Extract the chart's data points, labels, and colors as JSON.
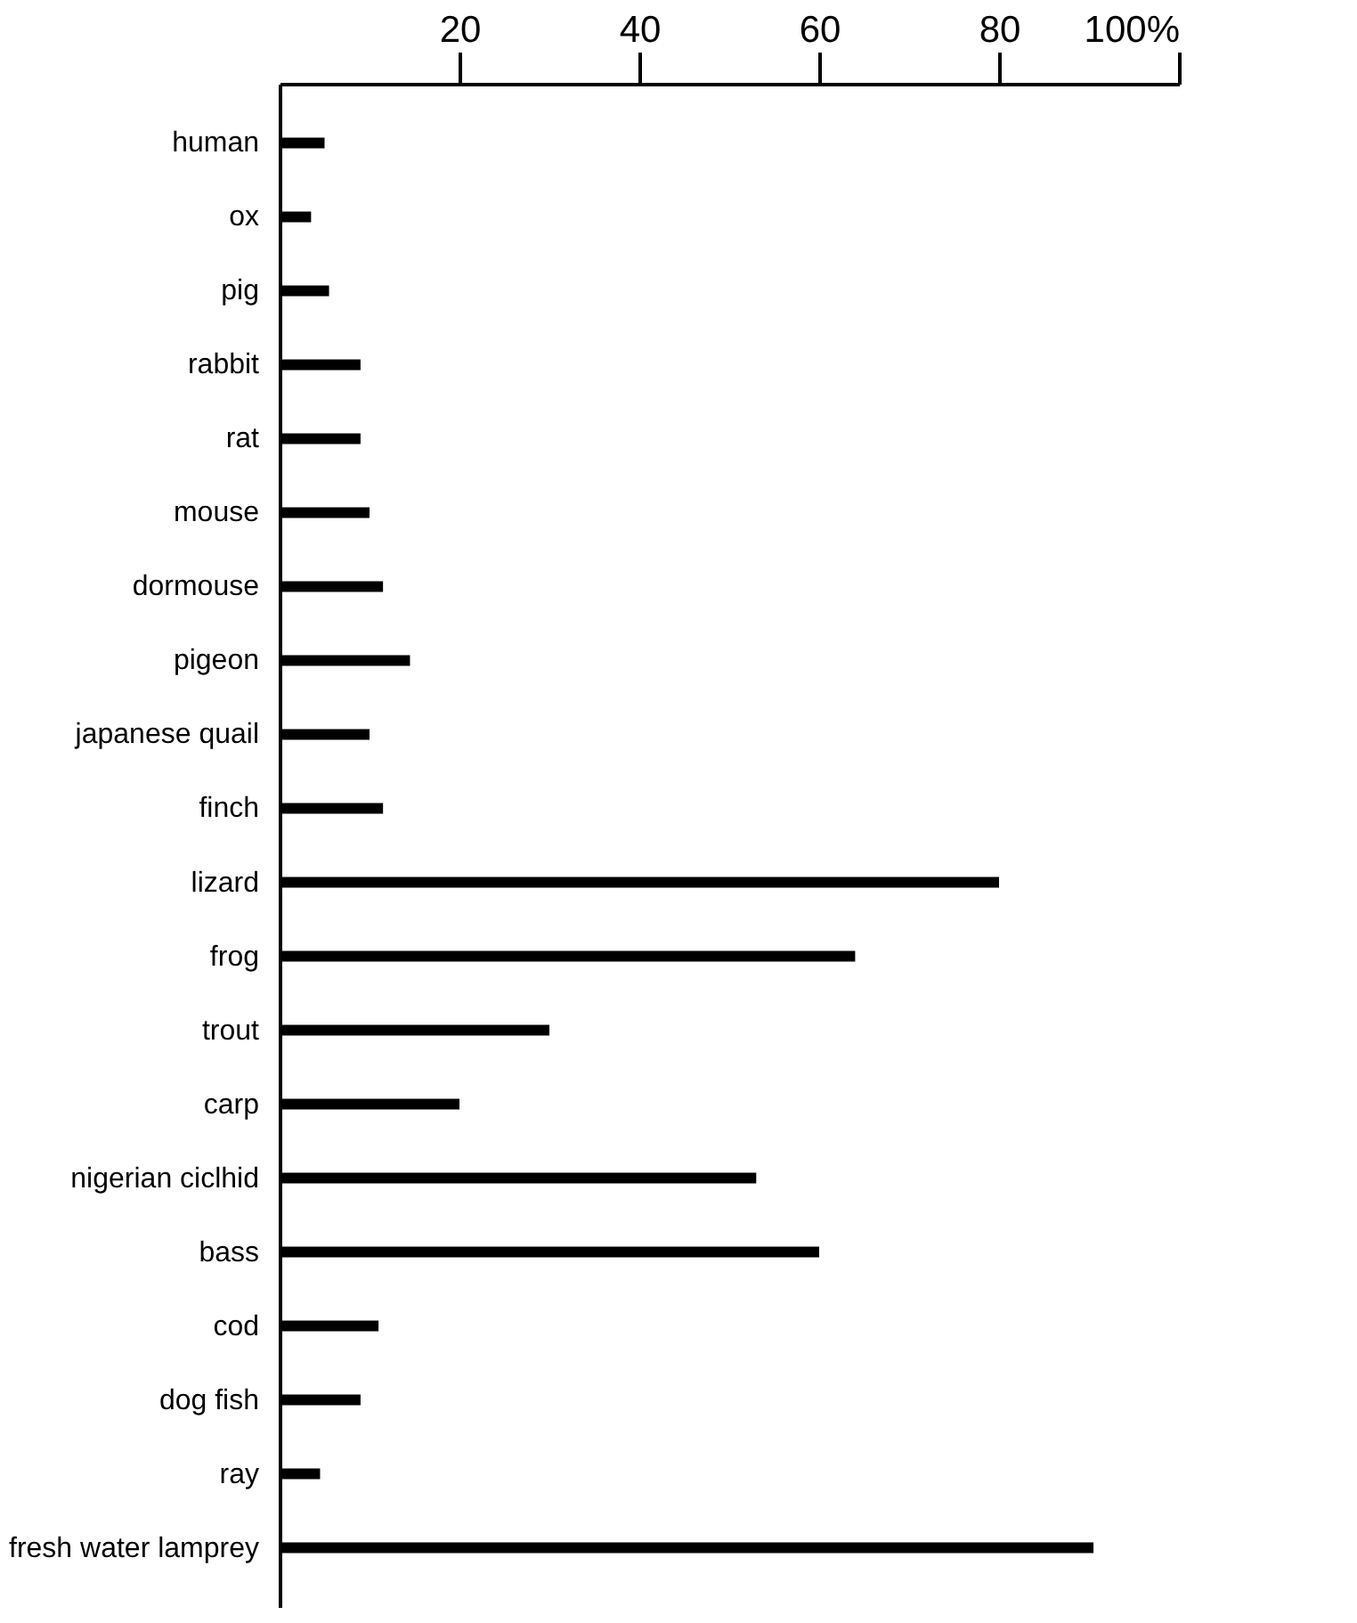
{
  "chart_data": {
    "type": "bar",
    "orientation": "horizontal",
    "categories": [
      "human",
      "ox",
      "pig",
      "rabbit",
      "rat",
      "mouse",
      "dormouse",
      "pigeon",
      "japanese quail",
      "finch",
      "lizard",
      "frog",
      "trout",
      "carp",
      "nigerian ciclhid",
      "bass",
      "cod",
      "dog fish",
      "ray",
      "fresh water lamprey"
    ],
    "values": [
      5,
      3.5,
      5.5,
      9,
      9,
      10,
      11.5,
      14.5,
      10,
      11.5,
      80,
      64,
      30,
      20,
      53,
      60,
      11,
      9,
      4.5,
      90.5
    ],
    "color": "#000000",
    "xlim": [
      0,
      100
    ],
    "xticks": [
      20,
      40,
      60,
      80,
      {
        "value": 100,
        "label": "100%"
      }
    ],
    "grid": false
  }
}
